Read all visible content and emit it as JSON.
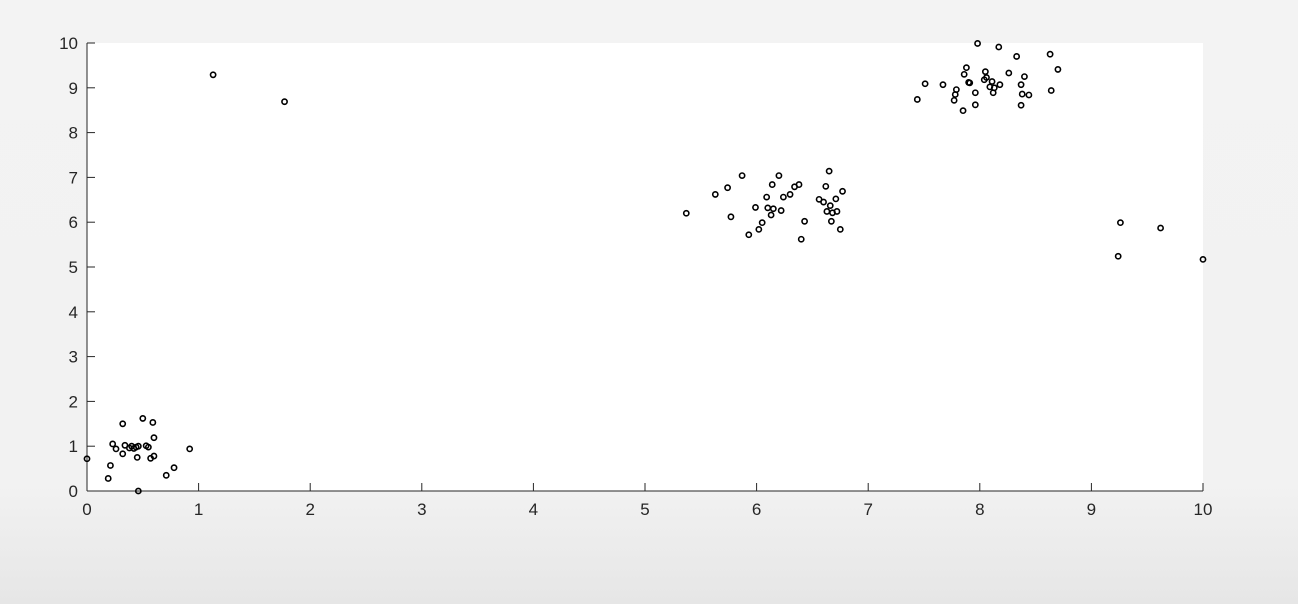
{
  "chart_data": {
    "type": "scatter",
    "title": "",
    "xlabel": "",
    "ylabel": "",
    "xlim": [
      0,
      10
    ],
    "ylim": [
      0,
      10
    ],
    "xticks": [
      "0",
      "1",
      "2",
      "3",
      "4",
      "5",
      "6",
      "7",
      "8",
      "9",
      "10"
    ],
    "yticks": [
      "0",
      "1",
      "2",
      "3",
      "4",
      "5",
      "6",
      "7",
      "8",
      "9",
      "10"
    ],
    "grid": false,
    "legend": "none",
    "marker": "circle-open",
    "marker_color": "#000000",
    "series": [
      {
        "points": [
          [
            0.0,
            0.72
          ],
          [
            0.19,
            0.28
          ],
          [
            0.21,
            0.57
          ],
          [
            0.23,
            1.05
          ],
          [
            0.26,
            0.94
          ],
          [
            0.32,
            1.5
          ],
          [
            0.32,
            0.83
          ],
          [
            0.34,
            1.02
          ],
          [
            0.38,
            0.96
          ],
          [
            0.4,
            1.0
          ],
          [
            0.42,
            0.95
          ],
          [
            0.44,
            0.98
          ],
          [
            0.45,
            0.75
          ],
          [
            0.46,
            1.0
          ],
          [
            0.46,
            0.0
          ],
          [
            0.5,
            1.62
          ],
          [
            0.53,
            1.01
          ],
          [
            0.55,
            0.98
          ],
          [
            0.57,
            0.73
          ],
          [
            0.59,
            1.53
          ],
          [
            0.6,
            0.78
          ],
          [
            0.6,
            1.19
          ],
          [
            0.71,
            0.35
          ],
          [
            0.78,
            0.52
          ],
          [
            0.92,
            0.94
          ],
          [
            1.13,
            9.29
          ],
          [
            1.77,
            8.69
          ],
          [
            5.37,
            6.2
          ],
          [
            5.63,
            6.62
          ],
          [
            5.74,
            6.77
          ],
          [
            5.77,
            6.12
          ],
          [
            5.87,
            7.04
          ],
          [
            5.93,
            5.72
          ],
          [
            5.99,
            6.33
          ],
          [
            6.02,
            5.84
          ],
          [
            6.05,
            5.99
          ],
          [
            6.09,
            6.56
          ],
          [
            6.1,
            6.32
          ],
          [
            6.13,
            6.16
          ],
          [
            6.14,
            6.84
          ],
          [
            6.15,
            6.3
          ],
          [
            6.2,
            7.04
          ],
          [
            6.22,
            6.26
          ],
          [
            6.24,
            6.56
          ],
          [
            6.3,
            6.62
          ],
          [
            6.34,
            6.79
          ],
          [
            6.38,
            6.84
          ],
          [
            6.4,
            5.62
          ],
          [
            6.43,
            6.02
          ],
          [
            6.56,
            6.51
          ],
          [
            6.6,
            6.45
          ],
          [
            6.62,
            6.8
          ],
          [
            6.63,
            6.24
          ],
          [
            6.65,
            7.14
          ],
          [
            6.66,
            6.37
          ],
          [
            6.67,
            6.02
          ],
          [
            6.68,
            6.21
          ],
          [
            6.71,
            6.52
          ],
          [
            6.72,
            6.24
          ],
          [
            6.75,
            5.84
          ],
          [
            6.77,
            6.69
          ],
          [
            7.44,
            8.74
          ],
          [
            7.51,
            9.09
          ],
          [
            7.67,
            9.07
          ],
          [
            7.77,
            8.72
          ],
          [
            7.78,
            8.85
          ],
          [
            7.79,
            8.96
          ],
          [
            7.85,
            8.49
          ],
          [
            7.86,
            9.3
          ],
          [
            7.88,
            9.45
          ],
          [
            7.9,
            9.12
          ],
          [
            7.91,
            9.11
          ],
          [
            7.96,
            8.89
          ],
          [
            7.96,
            8.62
          ],
          [
            7.98,
            9.99
          ],
          [
            8.04,
            9.18
          ],
          [
            8.05,
            9.36
          ],
          [
            8.06,
            9.23
          ],
          [
            8.09,
            9.02
          ],
          [
            8.11,
            9.14
          ],
          [
            8.12,
            8.89
          ],
          [
            8.13,
            9.0
          ],
          [
            8.17,
            9.91
          ],
          [
            8.18,
            9.07
          ],
          [
            8.26,
            9.33
          ],
          [
            8.33,
            9.7
          ],
          [
            8.37,
            8.61
          ],
          [
            8.37,
            9.07
          ],
          [
            8.38,
            8.86
          ],
          [
            8.4,
            9.25
          ],
          [
            8.44,
            8.84
          ],
          [
            8.63,
            9.75
          ],
          [
            8.64,
            8.94
          ],
          [
            8.7,
            9.41
          ],
          [
            9.24,
            5.24
          ],
          [
            9.26,
            5.99
          ],
          [
            9.62,
            5.87
          ],
          [
            10.0,
            5.17
          ]
        ]
      }
    ]
  }
}
